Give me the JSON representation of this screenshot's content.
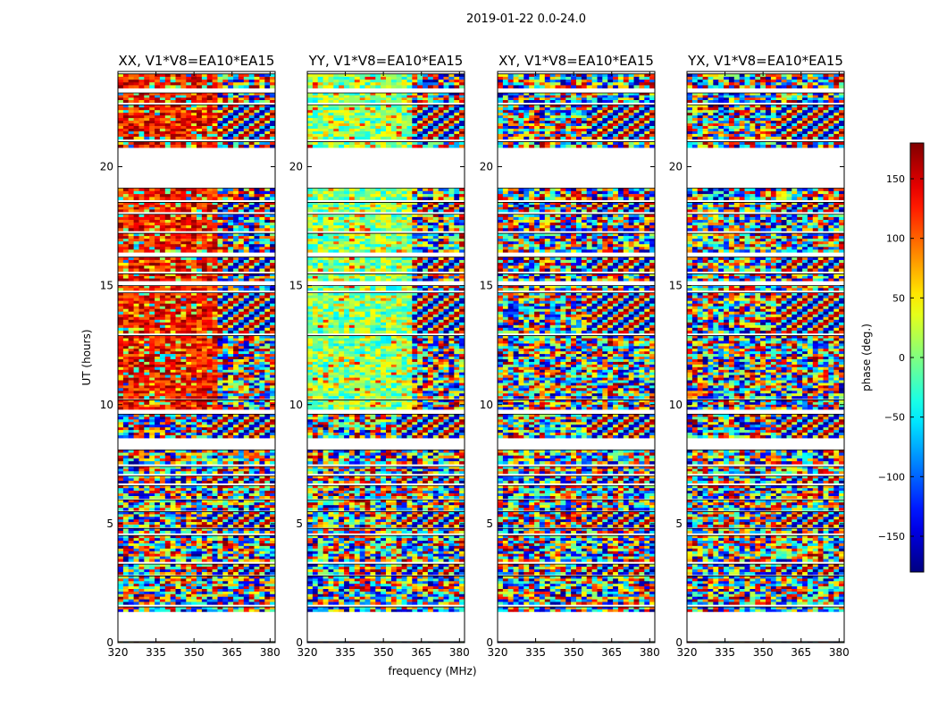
{
  "chart_data": {
    "type": "heatmap",
    "suptitle": "2019-01-22 0.0-24.0",
    "xlabel": "frequency (MHz)",
    "ylabel": "UT (hours)",
    "xlim": [
      320,
      382
    ],
    "ylim": [
      0,
      24
    ],
    "xticks": [
      320,
      335,
      350,
      365,
      380
    ],
    "yticks": [
      0,
      5,
      10,
      15,
      20
    ],
    "panels": [
      {
        "title": "XX, V1*V8=EA10*EA15",
        "tint": "red"
      },
      {
        "title": "YY, V1*V8=EA10*EA15",
        "tint": "green"
      },
      {
        "title": "XY, V1*V8=EA10*EA15",
        "tint": "noise"
      },
      {
        "title": "YX, V1*V8=EA10*EA15",
        "tint": "noise"
      }
    ],
    "colorbar": {
      "label": "phase (deg.)",
      "range": [
        -180,
        180
      ],
      "ticks": [
        150,
        100,
        50,
        0,
        -50,
        -100,
        -150
      ],
      "tick_labels": [
        "150",
        "100",
        "50",
        "0",
        "−50",
        "−100",
        "−150"
      ],
      "colormap": "jet"
    },
    "data_bands_ut": [
      [
        0.0,
        0.04
      ],
      [
        1.3,
        1.5
      ],
      [
        1.6,
        2.8
      ],
      [
        2.85,
        3.3
      ],
      [
        3.4,
        4.5
      ],
      [
        4.6,
        4.8
      ],
      [
        4.85,
        5.5
      ],
      [
        5.55,
        6.0
      ],
      [
        6.05,
        6.6
      ],
      [
        6.7,
        7.0
      ],
      [
        7.1,
        7.4
      ],
      [
        7.5,
        8.1
      ],
      [
        8.6,
        9.6
      ],
      [
        9.8,
        10.2
      ],
      [
        10.25,
        12.9
      ],
      [
        13.0,
        14.7
      ],
      [
        14.8,
        15.0
      ],
      [
        15.2,
        15.5
      ],
      [
        15.6,
        16.2
      ],
      [
        16.4,
        17.2
      ],
      [
        17.3,
        18.0
      ],
      [
        18.1,
        18.5
      ],
      [
        18.6,
        19.1
      ],
      [
        20.8,
        21.05
      ],
      [
        21.15,
        22.6
      ],
      [
        22.7,
        23.1
      ],
      [
        23.3,
        23.9
      ]
    ]
  }
}
